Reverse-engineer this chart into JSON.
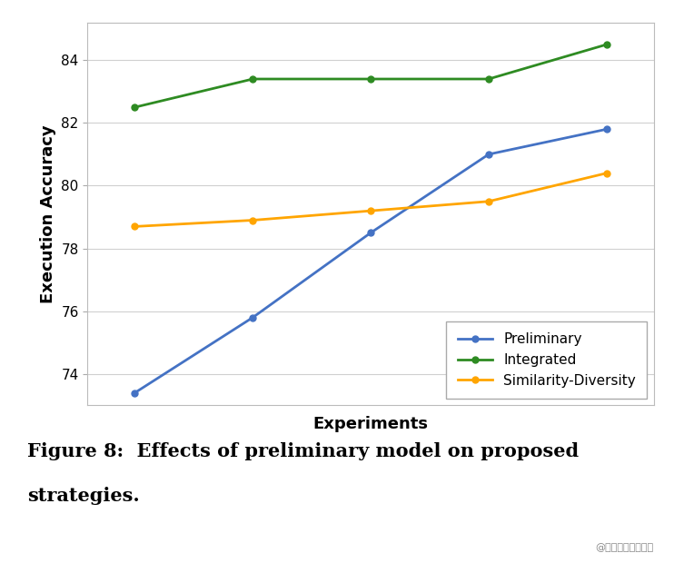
{
  "x": [
    1,
    2,
    3,
    4,
    5
  ],
  "preliminary": [
    73.4,
    75.8,
    78.5,
    81.0,
    81.8
  ],
  "integrated": [
    82.5,
    83.4,
    83.4,
    83.4,
    84.5
  ],
  "similarity_diversity": [
    78.7,
    78.9,
    79.2,
    79.5,
    80.4
  ],
  "preliminary_color": "#4472C4",
  "integrated_color": "#2E8B22",
  "similarity_diversity_color": "#FFA500",
  "ylabel": "Execution Accuracy",
  "xlabel": "Experiments",
  "ylim": [
    73.0,
    85.2
  ],
  "yticks": [
    74,
    76,
    78,
    80,
    82,
    84
  ],
  "legend_labels": [
    "Preliminary",
    "Integrated",
    "Similarity-Diversity"
  ],
  "legend_loc": "lower right",
  "caption_line1": "Figure 8:  Effects of preliminary model on proposed",
  "caption_line2": "strategies.",
  "watermark": "@稿土掘金技术社区",
  "bg_color": "#ffffff",
  "plot_bg_color": "#ffffff",
  "grid_color": "#d0d0d0",
  "marker": "o",
  "markersize": 5,
  "linewidth": 2.0
}
